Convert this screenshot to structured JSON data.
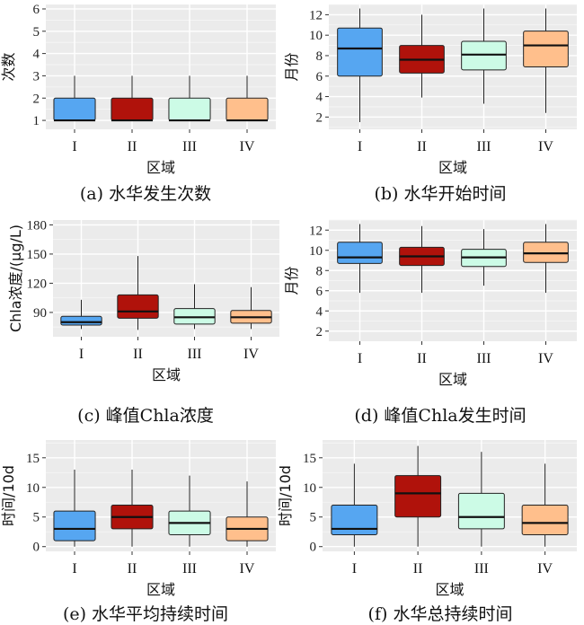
{
  "chart_data": [
    {
      "type": "boxplot",
      "caption": "(a) 水华发生次数",
      "xlabel": "区域",
      "ylabel": "次数",
      "categories": [
        "I",
        "II",
        "III",
        "IV"
      ],
      "colors": [
        "#56a6f1",
        "#b0120b",
        "#ccfbe6",
        "#ffbf8c"
      ],
      "ylim": [
        0.6,
        6.2
      ],
      "yticks": [
        1,
        2,
        3,
        4,
        5,
        6
      ],
      "grid": true,
      "boxes": [
        {
          "min": 1,
          "q1": 1,
          "median": 1,
          "q3": 2,
          "max": 3
        },
        {
          "min": 1,
          "q1": 1,
          "median": 1,
          "q3": 2,
          "max": 3
        },
        {
          "min": 1,
          "q1": 1,
          "median": 1,
          "q3": 2,
          "max": 3
        },
        {
          "min": 1,
          "q1": 1,
          "median": 1,
          "q3": 2,
          "max": 3
        }
      ]
    },
    {
      "type": "boxplot",
      "caption": "(b) 水华开始时间",
      "xlabel": "区域",
      "ylabel": "月份",
      "categories": [
        "I",
        "II",
        "III",
        "IV"
      ],
      "colors": [
        "#56a6f1",
        "#b0120b",
        "#ccfbe6",
        "#ffbf8c"
      ],
      "ylim": [
        0.8,
        13
      ],
      "yticks": [
        2,
        4,
        6,
        8,
        10,
        12
      ],
      "grid": true,
      "boxes": [
        {
          "min": 1.5,
          "q1": 6,
          "median": 8.7,
          "q3": 10.7,
          "max": 12.6
        },
        {
          "min": 3.9,
          "q1": 6.3,
          "median": 7.6,
          "q3": 9,
          "max": 12
        },
        {
          "min": 3.3,
          "q1": 6.6,
          "median": 8.1,
          "q3": 9.4,
          "max": 12.6
        },
        {
          "min": 2.4,
          "q1": 6.9,
          "median": 9,
          "q3": 10.4,
          "max": 12.6
        }
      ]
    },
    {
      "type": "boxplot",
      "caption": "(c) 峰值Chla浓度",
      "xlabel": "区域",
      "ylabel": "Chla浓度/(μg/L)",
      "categories": [
        "I",
        "II",
        "III",
        "IV"
      ],
      "colors": [
        "#56a6f1",
        "#b0120b",
        "#ccfbe6",
        "#ffbf8c"
      ],
      "ylim": [
        65,
        185
      ],
      "yticks": [
        90,
        120,
        150,
        180
      ],
      "grid": true,
      "boxes": [
        {
          "min": 73,
          "q1": 77,
          "median": 80,
          "q3": 86,
          "max": 103
        },
        {
          "min": 72,
          "q1": 84,
          "median": 91,
          "q3": 108,
          "max": 148
        },
        {
          "min": 73,
          "q1": 78,
          "median": 85,
          "q3": 94,
          "max": 119
        },
        {
          "min": 73,
          "q1": 79,
          "median": 85,
          "q3": 92,
          "max": 116
        }
      ]
    },
    {
      "type": "boxplot",
      "caption": "(d) 峰值Chla发生时间",
      "xlabel": "区域",
      "ylabel": "月份",
      "categories": [
        "I",
        "II",
        "III",
        "IV"
      ],
      "colors": [
        "#56a6f1",
        "#b0120b",
        "#ccfbe6",
        "#ffbf8c"
      ],
      "ylim": [
        1,
        13
      ],
      "yticks": [
        2,
        4,
        6,
        8,
        10,
        12
      ],
      "grid": true,
      "boxes": [
        {
          "min": 5.8,
          "q1": 8.7,
          "median": 9.3,
          "q3": 10.8,
          "max": 12.6
        },
        {
          "min": 5.8,
          "q1": 8.5,
          "median": 9.4,
          "q3": 10.3,
          "max": 12.4
        },
        {
          "min": 6.5,
          "q1": 8.4,
          "median": 9.3,
          "q3": 10.1,
          "max": 12.1
        },
        {
          "min": 5.8,
          "q1": 8.8,
          "median": 9.7,
          "q3": 10.8,
          "max": 12.6
        }
      ]
    },
    {
      "type": "boxplot",
      "caption": "(e) 水华平均持续时间",
      "xlabel": "区域",
      "ylabel": "时间/10d",
      "categories": [
        "I",
        "II",
        "III",
        "IV"
      ],
      "colors": [
        "#56a6f1",
        "#b0120b",
        "#ccfbe6",
        "#ffbf8c"
      ],
      "ylim": [
        -0.8,
        18
      ],
      "yticks": [
        0,
        5,
        10,
        15
      ],
      "grid": true,
      "boxes": [
        {
          "min": 0,
          "q1": 1,
          "median": 3,
          "q3": 6,
          "max": 13
        },
        {
          "min": 0,
          "q1": 3,
          "median": 5,
          "q3": 7,
          "max": 13
        },
        {
          "min": 0,
          "q1": 2,
          "median": 4,
          "q3": 6,
          "max": 12
        },
        {
          "min": 0,
          "q1": 1,
          "median": 3,
          "q3": 5,
          "max": 11
        }
      ]
    },
    {
      "type": "boxplot",
      "caption": "(f) 水华总持续时间",
      "xlabel": "区域",
      "ylabel": "时间/10d",
      "categories": [
        "I",
        "II",
        "III",
        "IV"
      ],
      "colors": [
        "#56a6f1",
        "#b0120b",
        "#ccfbe6",
        "#ffbf8c"
      ],
      "ylim": [
        -0.8,
        18
      ],
      "yticks": [
        0,
        5,
        10,
        15
      ],
      "grid": true,
      "boxes": [
        {
          "min": 0,
          "q1": 2,
          "median": 3,
          "q3": 7,
          "max": 14
        },
        {
          "min": 0,
          "q1": 5,
          "median": 9,
          "q3": 12,
          "max": 17
        },
        {
          "min": 0,
          "q1": 3,
          "median": 5,
          "q3": 9,
          "max": 16
        },
        {
          "min": 0,
          "q1": 2,
          "median": 4,
          "q3": 7,
          "max": 14
        }
      ]
    }
  ]
}
